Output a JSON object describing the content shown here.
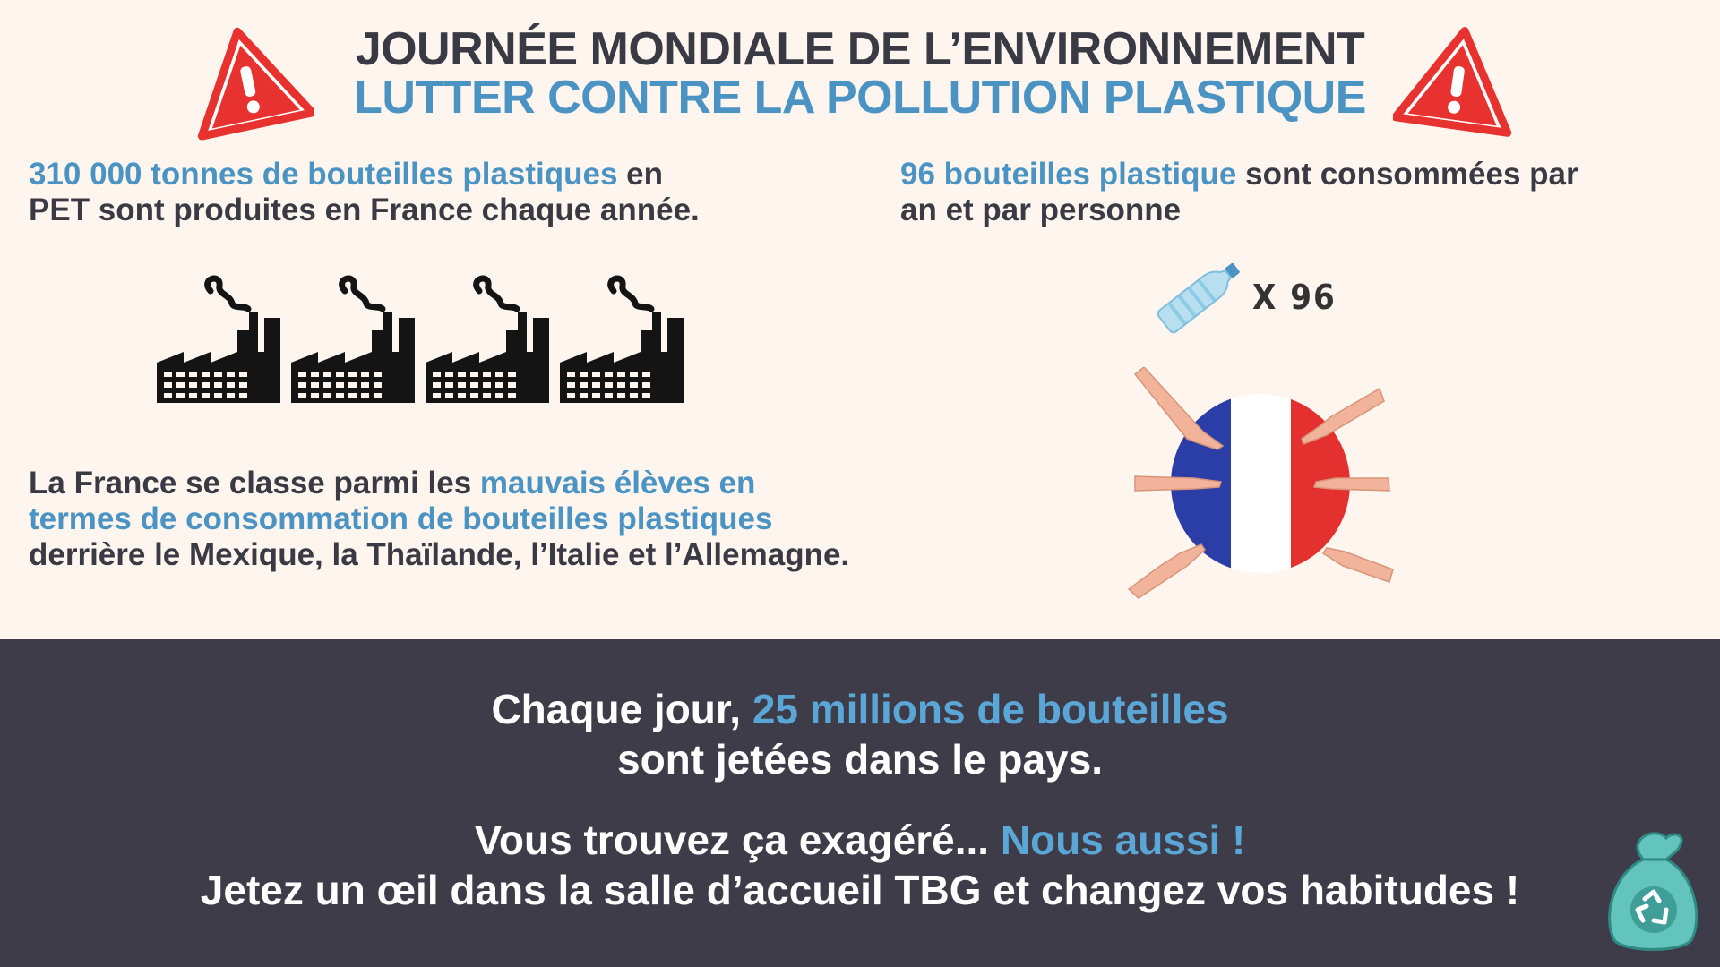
{
  "header": {
    "title_line1": "JOURNÉE MONDIALE DE L’ENVIRONNEMENT",
    "title_line2": "LUTTER CONTRE LA POLLUTION PLASTIQUE"
  },
  "stat_production": {
    "highlight": "310 000 tonnes de bouteilles plastiques",
    "text_a": " en",
    "text_b": "PET sont produites en France chaque année."
  },
  "stat_consumption": {
    "highlight": " 96 bouteilles plastique",
    "text_a": " sont consommées par",
    "text_b": "an et par personne"
  },
  "bottle_multiplier": "X 96",
  "stat_ranking": {
    "text_a": "La France se classe parmi les ",
    "highlight_a": "mauvais élèves en",
    "highlight_b": "termes de consommation de bouteilles plastiques",
    "text_b": "derrière le Mexique, la Thaïlande, l’Italie et l’Allemagne."
  },
  "bottom": {
    "line1_a": "Chaque jour, ",
    "line1_highlight": "25 millions de bouteilles",
    "line2": "sont jetées dans le pays.",
    "line3_a": "Vous trouvez ça exagéré...  ",
    "line3_highlight": "Nous aussi !",
    "line4": "Jetez un œil dans la salle d’accueil TBG et changez vos habitudes !"
  },
  "icons": {
    "warning": "warning-icon",
    "factory": "factory-icon",
    "bottle": "plastic-bottle-icon",
    "flag": "france-flag-icon",
    "bag": "recycle-bag-icon"
  },
  "colors": {
    "background": "#fdf5ee",
    "dark_text": "#3a3a45",
    "accent_blue": "#4b93c3",
    "warning_red": "#e8322f",
    "bottom_band": "#3d3c48",
    "flag_blue": "#2b3ea8",
    "flag_red": "#e53030",
    "bag_teal": "#63c3bd"
  }
}
